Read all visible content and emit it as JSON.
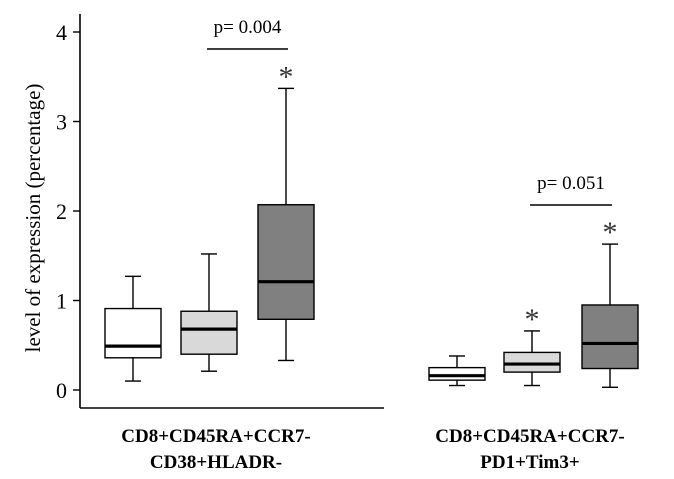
{
  "chart_data": {
    "type": "box",
    "ylabel": "level of expression (percentage)",
    "ylim": [
      -0.15,
      4.2
    ],
    "yticks": [
      0,
      1,
      2,
      3,
      4
    ],
    "groups": [
      {
        "label_lines": [
          "CD8+CD45RA+CCR7-",
          "CD38+HLADR-"
        ],
        "boxes": [
          {
            "fill": "#ffffff",
            "min": 0.1,
            "q1": 0.36,
            "median": 0.49,
            "q3": 0.91,
            "max": 1.27,
            "star": false
          },
          {
            "fill": "#d9d9d9",
            "min": 0.21,
            "q1": 0.4,
            "median": 0.68,
            "q3": 0.88,
            "max": 1.52,
            "star": false
          },
          {
            "fill": "#808080",
            "min": 0.33,
            "q1": 0.79,
            "median": 1.21,
            "q3": 2.07,
            "max": 3.37,
            "star": true
          }
        ],
        "pvalue": {
          "text": "p= 0.004"
        }
      },
      {
        "label_lines": [
          "CD8+CD45RA+CCR7-",
          "PD1+Tim3+"
        ],
        "boxes": [
          {
            "fill": "#ffffff",
            "min": 0.05,
            "q1": 0.11,
            "median": 0.16,
            "q3": 0.25,
            "max": 0.38,
            "star": false
          },
          {
            "fill": "#d9d9d9",
            "min": 0.05,
            "q1": 0.2,
            "median": 0.29,
            "q3": 0.42,
            "max": 0.66,
            "star": true
          },
          {
            "fill": "#808080",
            "min": 0.03,
            "q1": 0.24,
            "median": 0.52,
            "q3": 0.95,
            "max": 1.63,
            "star": true
          }
        ],
        "pvalue": {
          "text": "p= 0.051"
        }
      }
    ],
    "star_symbol": "*",
    "colors": {
      "white": "#ffffff",
      "light_gray": "#d9d9d9",
      "dark_gray": "#808080",
      "line": "#000000"
    }
  }
}
